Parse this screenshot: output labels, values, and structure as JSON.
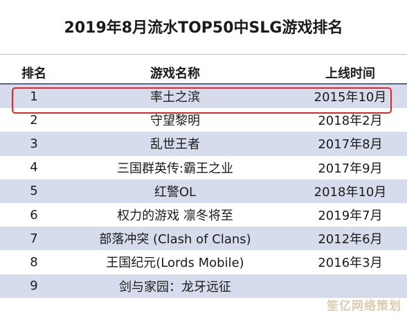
{
  "title": "2019年8月流水TOP50中SLG游戏排名",
  "table": {
    "headers": {
      "rank": "排名",
      "name": "游戏名称",
      "launch": "上线时间"
    },
    "rows": [
      {
        "rank": "1",
        "name": "率土之滨",
        "launch": "2015年10月"
      },
      {
        "rank": "2",
        "name": "守望黎明",
        "launch": "2018年2月"
      },
      {
        "rank": "3",
        "name": "乱世王者",
        "launch": "2017年8月"
      },
      {
        "rank": "4",
        "name": "三国群英传:霸王之业",
        "launch": "2017年9月"
      },
      {
        "rank": "5",
        "name": "红警OL",
        "launch": "2018年10月"
      },
      {
        "rank": "6",
        "name": "权力的游戏 凛冬将至",
        "launch": "2019年7月"
      },
      {
        "rank": "7",
        "name": "部落冲突 (Clash of Clans)",
        "launch": "2012年6月"
      },
      {
        "rank": "8",
        "name": "王国纪元(Lords Mobile)",
        "launch": "2016年3月"
      },
      {
        "rank": "9",
        "name": "剑与家园：龙牙远征",
        "launch": ""
      }
    ]
  },
  "watermark": "笙亿网络策划",
  "colors": {
    "shade_row": "#d6dcec",
    "highlight_border": "#e0262a",
    "header_rule": "#5a6680"
  }
}
